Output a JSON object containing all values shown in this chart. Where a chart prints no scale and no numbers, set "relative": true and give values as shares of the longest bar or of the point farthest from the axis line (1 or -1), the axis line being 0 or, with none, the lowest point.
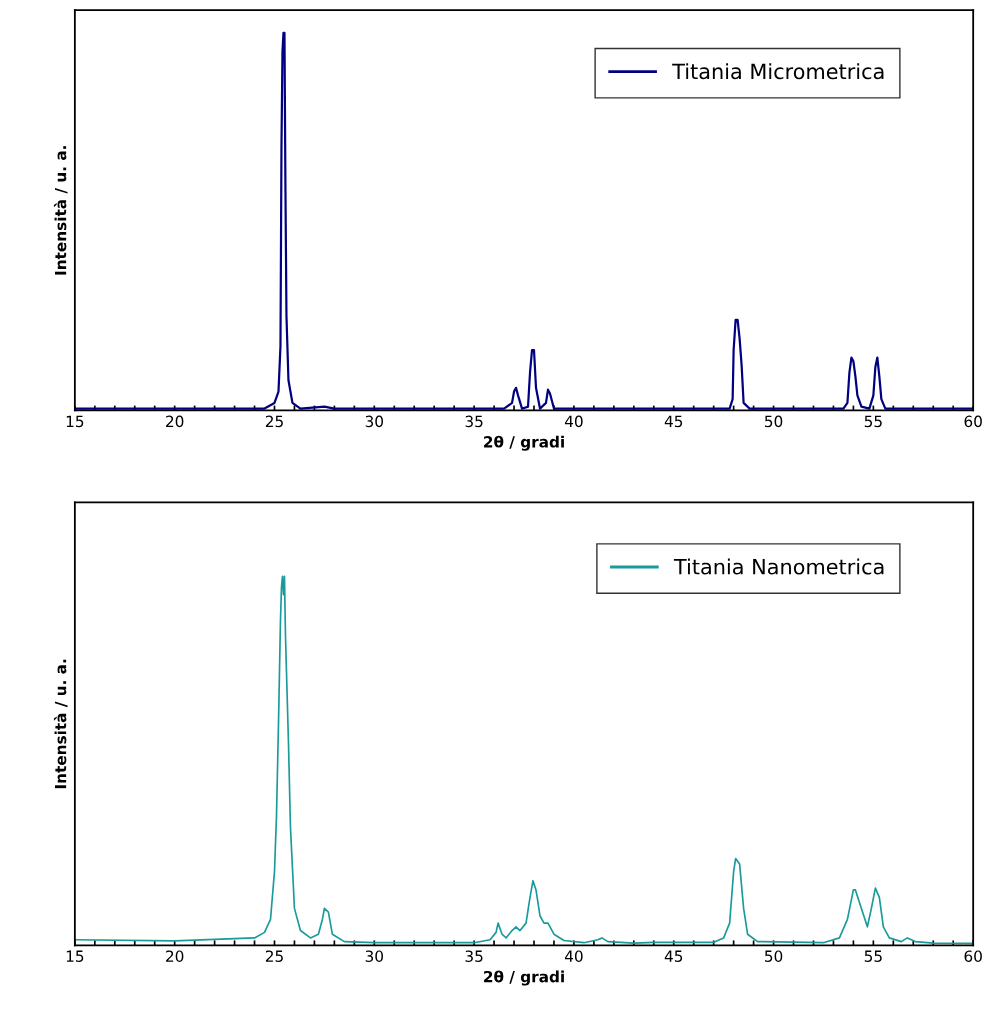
{
  "chart_data": [
    {
      "type": "line",
      "relative": true,
      "xlabel": "2θ / gradi",
      "ylabel": "Intensità / u. a.",
      "legend": "top right",
      "tick_labels": "x",
      "grid": false,
      "xlim": [
        15,
        60
      ],
      "xticks": [
        15,
        {
          "value": 16,
          "label": null
        },
        {
          "value": 17,
          "label": null
        },
        {
          "value": 18,
          "label": null
        },
        {
          "value": 19,
          "label": null
        },
        20,
        {
          "value": 21,
          "label": null
        },
        {
          "value": 22,
          "label": null
        },
        {
          "value": 23,
          "label": null
        },
        {
          "value": 24,
          "label": null
        },
        25,
        {
          "value": 26,
          "label": null
        },
        {
          "value": 27,
          "label": null
        },
        {
          "value": 28,
          "label": null
        },
        {
          "value": 29,
          "label": null
        },
        30,
        {
          "value": 31,
          "label": null
        },
        {
          "value": 32,
          "label": null
        },
        {
          "value": 33,
          "label": null
        },
        {
          "value": 34,
          "label": null
        },
        35,
        {
          "value": 36,
          "label": null
        },
        {
          "value": 37,
          "label": null
        },
        {
          "value": 38,
          "label": null
        },
        {
          "value": 39,
          "label": null
        },
        40,
        {
          "value": 41,
          "label": null
        },
        {
          "value": 42,
          "label": null
        },
        {
          "value": 43,
          "label": null
        },
        {
          "value": 44,
          "label": null
        },
        45,
        {
          "value": 46,
          "label": null
        },
        {
          "value": 47,
          "label": null
        },
        {
          "value": 48,
          "label": null
        },
        {
          "value": 49,
          "label": null
        },
        50,
        {
          "value": 51,
          "label": null
        },
        {
          "value": 52,
          "label": null
        },
        {
          "value": 53,
          "label": null
        },
        {
          "value": 54,
          "label": null
        },
        55,
        {
          "value": 56,
          "label": null
        },
        {
          "value": 57,
          "label": null
        },
        {
          "value": 58,
          "label": null
        },
        {
          "value": 59,
          "label": null
        },
        60
      ],
      "series": [
        {
          "name": "Titania Micrometrica",
          "color": "#000080",
          "x": [
            15,
            24.5,
            25.0,
            25.2,
            25.3,
            25.35,
            25.4,
            25.45,
            25.5,
            25.55,
            25.6,
            25.7,
            25.9,
            26.3,
            27.5,
            28,
            36.5,
            36.9,
            37.0,
            37.1,
            37.2,
            37.4,
            37.7,
            37.8,
            37.9,
            38.0,
            38.1,
            38.3,
            38.6,
            38.7,
            38.8,
            39.0,
            47.8,
            47.95,
            48.0,
            48.1,
            48.2,
            48.3,
            48.4,
            48.5,
            48.8,
            53.5,
            53.7,
            53.8,
            53.9,
            54.0,
            54.1,
            54.2,
            54.4,
            54.8,
            55.0,
            55.1,
            55.2,
            55.3,
            55.4,
            55.6,
            60
          ],
          "values": [
            0.005,
            0.005,
            0.02,
            0.05,
            0.17,
            0.7,
            0.95,
            1.0,
            1.0,
            0.58,
            0.25,
            0.08,
            0.02,
            0.005,
            0.01,
            0.005,
            0.005,
            0.02,
            0.05,
            0.06,
            0.04,
            0.005,
            0.01,
            0.1,
            0.16,
            0.16,
            0.06,
            0.005,
            0.02,
            0.055,
            0.045,
            0.005,
            0.005,
            0.03,
            0.16,
            0.24,
            0.24,
            0.19,
            0.12,
            0.02,
            0.005,
            0.005,
            0.02,
            0.1,
            0.14,
            0.13,
            0.09,
            0.04,
            0.01,
            0.005,
            0.04,
            0.115,
            0.14,
            0.09,
            0.03,
            0.005,
            0.005
          ]
        }
      ]
    },
    {
      "type": "line",
      "relative": true,
      "xlabel": "2θ / gradi",
      "ylabel": "Intensità / u. a.",
      "legend": "top right",
      "tick_labels": "x",
      "grid": false,
      "xlim": [
        15,
        60
      ],
      "xticks": [
        15,
        {
          "value": 16,
          "label": null
        },
        {
          "value": 17,
          "label": null
        },
        {
          "value": 18,
          "label": null
        },
        {
          "value": 19,
          "label": null
        },
        20,
        {
          "value": 21,
          "label": null
        },
        {
          "value": 22,
          "label": null
        },
        {
          "value": 23,
          "label": null
        },
        {
          "value": 24,
          "label": null
        },
        25,
        {
          "value": 26,
          "label": null
        },
        {
          "value": 27,
          "label": null
        },
        {
          "value": 28,
          "label": null
        },
        {
          "value": 29,
          "label": null
        },
        30,
        {
          "value": 31,
          "label": null
        },
        {
          "value": 32,
          "label": null
        },
        {
          "value": 33,
          "label": null
        },
        {
          "value": 34,
          "label": null
        },
        35,
        {
          "value": 36,
          "label": null
        },
        {
          "value": 37,
          "label": null
        },
        {
          "value": 38,
          "label": null
        },
        {
          "value": 39,
          "label": null
        },
        40,
        {
          "value": 41,
          "label": null
        },
        {
          "value": 42,
          "label": null
        },
        {
          "value": 43,
          "label": null
        },
        {
          "value": 44,
          "label": null
        },
        45,
        {
          "value": 46,
          "label": null
        },
        {
          "value": 47,
          "label": null
        },
        {
          "value": 48,
          "label": null
        },
        {
          "value": 49,
          "label": null
        },
        50,
        {
          "value": 51,
          "label": null
        },
        {
          "value": 52,
          "label": null
        },
        {
          "value": 53,
          "label": null
        },
        {
          "value": 54,
          "label": null
        },
        55,
        {
          "value": 56,
          "label": null
        },
        {
          "value": 57,
          "label": null
        },
        {
          "value": 58,
          "label": null
        },
        {
          "value": 59,
          "label": null
        },
        60
      ],
      "series": [
        {
          "name": "Titania Nanometrica",
          "color": "#1a9a9a",
          "x": [
            15,
            20,
            24,
            24.5,
            24.8,
            25.0,
            25.1,
            25.2,
            25.3,
            25.35,
            25.4,
            25.45,
            25.5,
            25.55,
            25.7,
            25.8,
            26.0,
            26.3,
            26.8,
            27.2,
            27.4,
            27.5,
            27.7,
            27.9,
            28.5,
            30,
            35,
            35.8,
            36.1,
            36.2,
            36.4,
            36.6,
            36.9,
            37.1,
            37.3,
            37.6,
            37.8,
            37.95,
            38.1,
            38.3,
            38.5,
            38.7,
            39.0,
            39.5,
            40.5,
            41.2,
            41.4,
            41.7,
            43,
            44,
            47,
            47.5,
            47.8,
            48.0,
            48.1,
            48.3,
            48.5,
            48.7,
            49.2,
            52.5,
            53.3,
            53.7,
            54.0,
            54.1,
            54.4,
            54.7,
            54.9,
            55.1,
            55.3,
            55.5,
            55.8,
            56.4,
            56.7,
            57.1,
            58,
            60
          ],
          "values": [
            0.015,
            0.012,
            0.02,
            0.035,
            0.07,
            0.2,
            0.35,
            0.6,
            0.88,
            0.97,
            1.0,
            0.95,
            1.0,
            0.84,
            0.55,
            0.32,
            0.1,
            0.04,
            0.02,
            0.03,
            0.07,
            0.1,
            0.09,
            0.03,
            0.01,
            0.007,
            0.007,
            0.015,
            0.035,
            0.06,
            0.03,
            0.02,
            0.04,
            0.05,
            0.04,
            0.06,
            0.13,
            0.175,
            0.15,
            0.08,
            0.06,
            0.06,
            0.03,
            0.013,
            0.007,
            0.015,
            0.02,
            0.01,
            0.006,
            0.008,
            0.008,
            0.02,
            0.06,
            0.2,
            0.235,
            0.22,
            0.1,
            0.03,
            0.01,
            0.007,
            0.02,
            0.07,
            0.15,
            0.15,
            0.1,
            0.05,
            0.1,
            0.155,
            0.13,
            0.05,
            0.02,
            0.01,
            0.02,
            0.01,
            0.006,
            0.005
          ]
        }
      ]
    }
  ]
}
